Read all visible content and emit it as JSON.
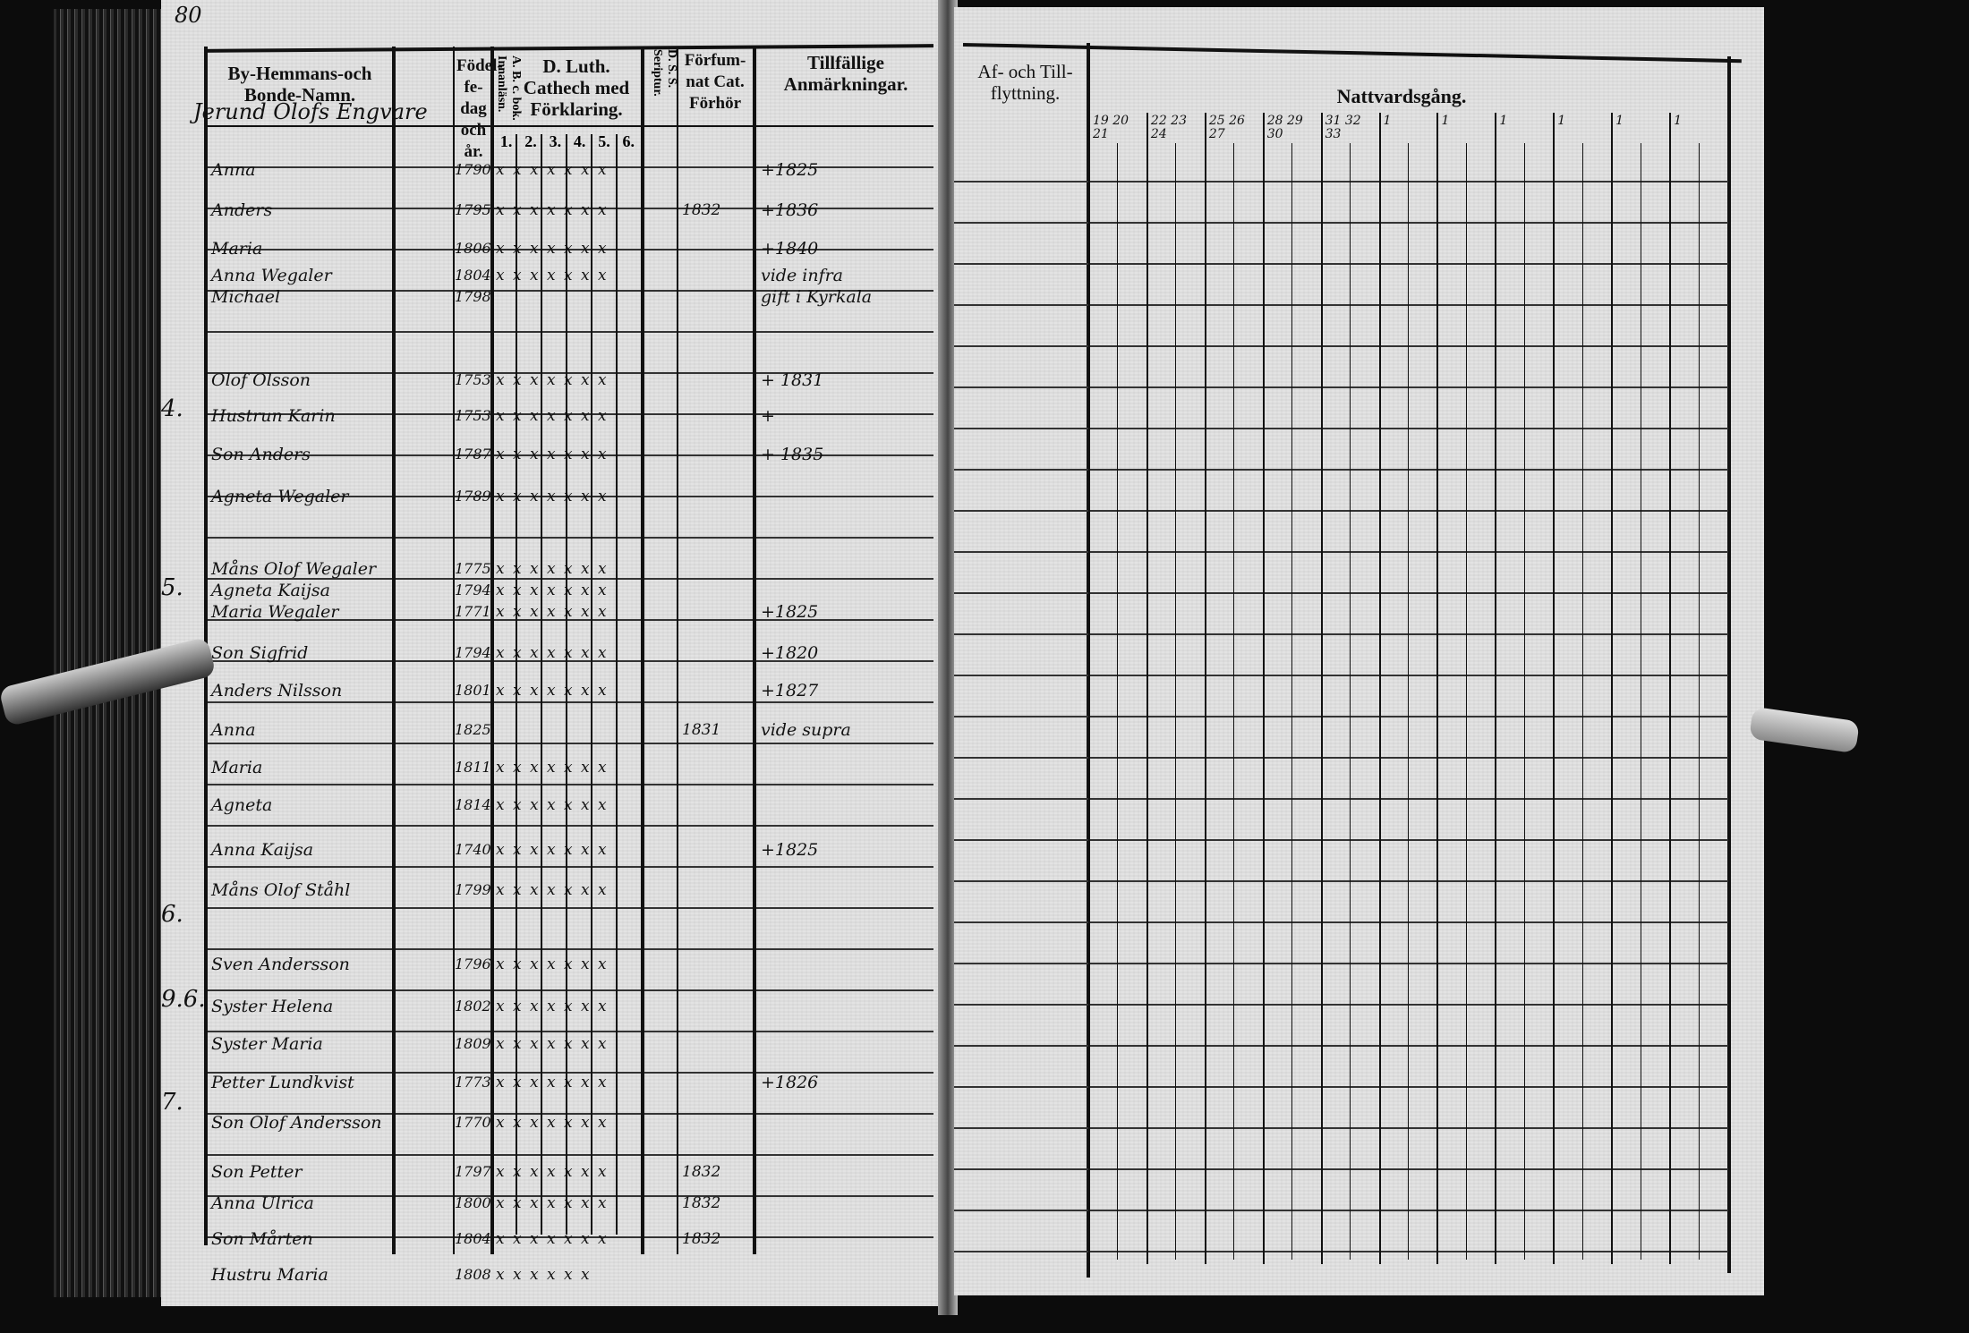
{
  "page_number": "80",
  "left_page": {
    "headers": {
      "name": "By-Hemmans-och Bonde-Namn.",
      "birth": "Födel-fe-dag och år.",
      "abc": "A. B. c. bok. Innanläsn.",
      "catechism": "D. Luth. Cathech med Förklaring.",
      "catechism_parts": [
        "1.",
        "2.",
        "3.",
        "4.",
        "5.",
        "6."
      ],
      "scripture": "D. S. S. Seriptur.",
      "exam": "Förfum-nat Cat. Förhör",
      "remarks": "Tillfällige Anmärkningar."
    },
    "farm_title": "Jerund Olofs Engvare",
    "margin_numbers": [
      "4.",
      "5.",
      "6.",
      "9.6.",
      "7."
    ],
    "rows": [
      {
        "name": "Anna",
        "birth": "1790",
        "marks": "x x x x x x x",
        "exam": "",
        "remark": "+1825"
      },
      {
        "name": "Anders",
        "birth": "1795",
        "marks": "x x x x x x x",
        "exam": "1832",
        "remark": "+1836"
      },
      {
        "name": "Maria",
        "birth": "1806",
        "marks": "x x x x x x x",
        "exam": "",
        "remark": "+1840"
      },
      {
        "name": "Anna Wegaler",
        "birth": "1804",
        "marks": "x x x x x x x",
        "exam": "",
        "remark": "vide infra"
      },
      {
        "name": "Michael",
        "birth": "1798",
        "marks": "",
        "exam": "",
        "remark": "gift i Kyrkala"
      },
      {
        "name": "Olof Olsson",
        "birth": "1753",
        "marks": "x x x x x x x",
        "exam": "",
        "remark": "+ 1831"
      },
      {
        "name": "Hustrun Karin",
        "birth": "1753",
        "marks": "x x x x x x x",
        "exam": "",
        "remark": "+"
      },
      {
        "name": "Son Anders",
        "birth": "1787",
        "marks": "x x x x x x x",
        "exam": "",
        "remark": "+ 1835"
      },
      {
        "name": "Agneta Wegaler",
        "birth": "1789",
        "marks": "x x x x x x x",
        "exam": "",
        "remark": ""
      },
      {
        "name": "Måns Olof Wegaler",
        "birth": "1775",
        "marks": "x x x x x x x",
        "exam": "",
        "remark": ""
      },
      {
        "name": "Agneta Kaijsa",
        "birth": "1794",
        "marks": "x x x x x x x",
        "exam": "",
        "remark": ""
      },
      {
        "name": "Maria Wegaler",
        "birth": "1771",
        "marks": "x x x x x x x",
        "exam": "",
        "remark": "+1825"
      },
      {
        "name": "Son Sigfrid",
        "birth": "1794",
        "marks": "x x x x x x x",
        "exam": "",
        "remark": "+1820"
      },
      {
        "name": "Anders Nilsson",
        "birth": "1801",
        "marks": "x x x x x x x",
        "exam": "",
        "remark": "+1827"
      },
      {
        "name": "Anna",
        "birth": "1825",
        "marks": "",
        "exam": "1831",
        "remark": "vide supra"
      },
      {
        "name": "Maria",
        "birth": "1811",
        "marks": "x x x x x x x",
        "exam": "",
        "remark": ""
      },
      {
        "name": "Agneta",
        "birth": "1814",
        "marks": "x x x x x x x",
        "exam": "",
        "remark": ""
      },
      {
        "name": "Anna Kaijsa",
        "birth": "1740",
        "marks": "x x x x x x x",
        "exam": "",
        "remark": "+1825"
      },
      {
        "name": "Måns Olof Ståhl",
        "birth": "1799",
        "marks": "x x x x x x x",
        "exam": "",
        "remark": ""
      },
      {
        "name": "Sven Andersson",
        "birth": "1796",
        "marks": "x x x x x x x",
        "exam": "",
        "remark": ""
      },
      {
        "name": "Syster Helena",
        "birth": "1802",
        "marks": "x x x x x x x",
        "exam": "",
        "remark": ""
      },
      {
        "name": "Syster Maria",
        "birth": "1809",
        "marks": "x x x x x x x",
        "exam": "",
        "remark": ""
      },
      {
        "name": "Petter Lundkvist",
        "birth": "1773",
        "marks": "x x x x x x x",
        "exam": "",
        "remark": "+1826"
      },
      {
        "name": "Son Olof Andersson",
        "birth": "1770",
        "marks": "x x x x x x x",
        "exam": "",
        "remark": ""
      },
      {
        "name": "Son Petter",
        "birth": "1797",
        "marks": "x x x x x x x",
        "exam": "1832",
        "remark": ""
      },
      {
        "name": "Anna Ulrica",
        "birth": "1800",
        "marks": "x x x x x x x",
        "exam": "1832",
        "remark": ""
      },
      {
        "name": "Son Mårten",
        "birth": "1804",
        "marks": "x x x x x x x",
        "exam": "1832",
        "remark": ""
      },
      {
        "name": "Hustru Maria",
        "birth": "1808",
        "marks": "x x x x x x",
        "exam": "",
        "remark": ""
      }
    ]
  },
  "right_page": {
    "headers": {
      "moves": "Af- och Till-flyttning.",
      "communion": "Nattvardsgång.",
      "communion_columns": [
        "19 20 21",
        "22 23 24",
        "25 26 27",
        "28 29 30",
        "31 32 33",
        "1",
        "1",
        "1",
        "1",
        "1",
        "1"
      ]
    }
  }
}
